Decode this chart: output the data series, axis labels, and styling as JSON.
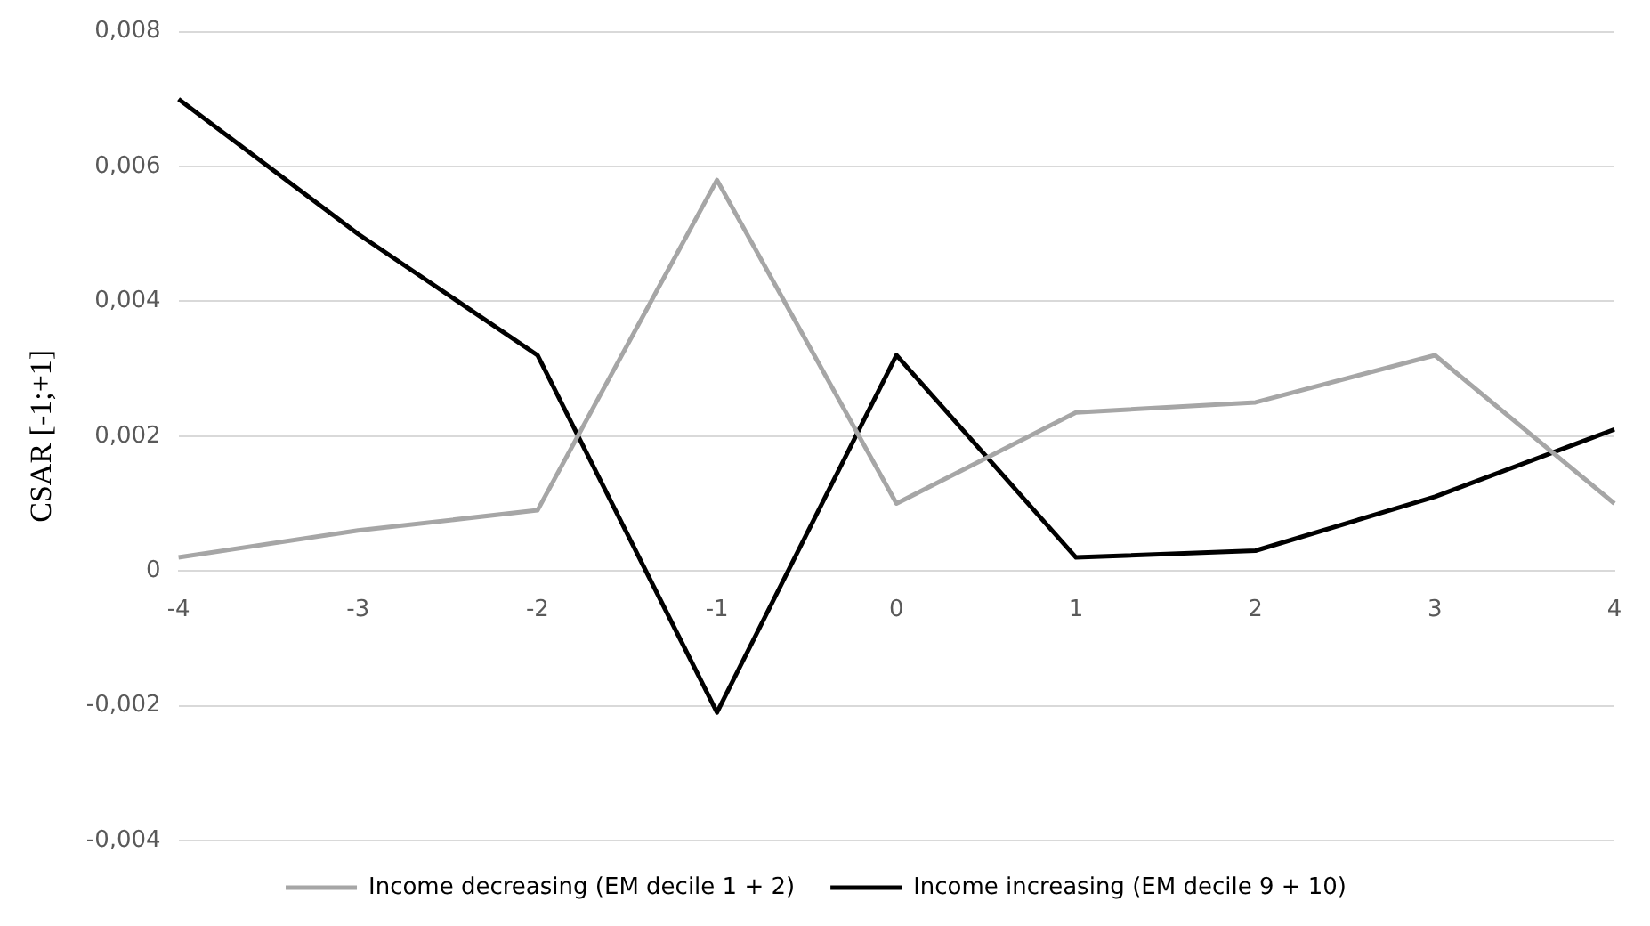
{
  "chart_data": {
    "type": "line",
    "ylabel": "CSAR [-1;+1]",
    "categories": [
      "-4",
      "-3",
      "-2",
      "-1",
      "0",
      "1",
      "2",
      "3",
      "4"
    ],
    "series": [
      {
        "name": "Income decreasing (EM decile 1 + 2)",
        "color": "#a6a6a6",
        "values": [
          0.0002,
          0.0006,
          0.0009,
          0.0058,
          0.001,
          0.00235,
          0.0025,
          0.0032,
          0.001
        ]
      },
      {
        "name": "Income increasing (EM decile 9 + 10)",
        "color": "#000000",
        "values": [
          0.007,
          0.005,
          0.0032,
          -0.0021,
          0.0032,
          0.0002,
          0.0003,
          0.0011,
          0.0021
        ]
      }
    ],
    "ylim": [
      -0.004,
      0.008
    ],
    "yticks": [
      {
        "value": -0.004,
        "label": "-0,004"
      },
      {
        "value": -0.002,
        "label": "-0,002"
      },
      {
        "value": 0,
        "label": "0"
      },
      {
        "value": 0.002,
        "label": "0,002"
      },
      {
        "value": 0.004,
        "label": "0,004"
      },
      {
        "value": 0.006,
        "label": "0,006"
      },
      {
        "value": 0.008,
        "label": "0,008"
      }
    ],
    "grid": "y",
    "legend": "bottom",
    "marker": "none",
    "line_style": "solid"
  }
}
